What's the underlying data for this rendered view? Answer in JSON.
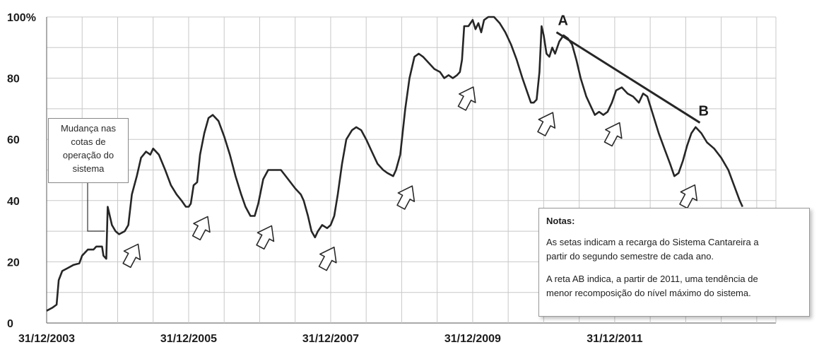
{
  "chart_data": {
    "type": "line",
    "title": "",
    "xlabel": "",
    "ylabel": "",
    "ylim": [
      0,
      100
    ],
    "y_ticks": [
      "0",
      "20",
      "40",
      "60",
      "80",
      "100%"
    ],
    "x_ticks": [
      "31/12/2003",
      "31/12/2005",
      "31/12/2007",
      "31/12/2009",
      "31/12/2011"
    ],
    "x_tick_years": [
      2004.0,
      2006.0,
      2008.0,
      2010.0,
      2012.0
    ],
    "xlim_years": [
      2004.0,
      2014.27
    ],
    "grid": true,
    "series": [
      {
        "name": "",
        "points": [
          [
            2004.0,
            4
          ],
          [
            2004.08,
            5
          ],
          [
            2004.14,
            6
          ],
          [
            2004.17,
            14
          ],
          [
            2004.22,
            17
          ],
          [
            2004.3,
            18
          ],
          [
            2004.38,
            19
          ],
          [
            2004.46,
            19.5
          ],
          [
            2004.5,
            22
          ],
          [
            2004.58,
            24
          ],
          [
            2004.66,
            24
          ],
          [
            2004.7,
            25
          ],
          [
            2004.78,
            25
          ],
          [
            2004.8,
            22
          ],
          [
            2004.84,
            21
          ],
          [
            2004.86,
            38
          ],
          [
            2004.92,
            32
          ],
          [
            2004.97,
            30
          ],
          [
            2005.02,
            29
          ],
          [
            2005.1,
            30
          ],
          [
            2005.15,
            32
          ],
          [
            2005.2,
            42
          ],
          [
            2005.27,
            48
          ],
          [
            2005.33,
            54
          ],
          [
            2005.4,
            56
          ],
          [
            2005.46,
            55
          ],
          [
            2005.5,
            57
          ],
          [
            2005.58,
            55
          ],
          [
            2005.67,
            50
          ],
          [
            2005.75,
            45
          ],
          [
            2005.83,
            42
          ],
          [
            2005.9,
            40
          ],
          [
            2005.96,
            38
          ],
          [
            2006.0,
            38
          ],
          [
            2006.03,
            39
          ],
          [
            2006.07,
            45
          ],
          [
            2006.12,
            46
          ],
          [
            2006.16,
            55
          ],
          [
            2006.22,
            62
          ],
          [
            2006.28,
            67
          ],
          [
            2006.34,
            68
          ],
          [
            2006.42,
            66
          ],
          [
            2006.5,
            61
          ],
          [
            2006.58,
            55
          ],
          [
            2006.66,
            48
          ],
          [
            2006.74,
            42
          ],
          [
            2006.8,
            38
          ],
          [
            2006.87,
            35
          ],
          [
            2006.93,
            35
          ],
          [
            2006.98,
            39
          ],
          [
            2007.05,
            47
          ],
          [
            2007.12,
            50
          ],
          [
            2007.2,
            50
          ],
          [
            2007.3,
            50
          ],
          [
            2007.4,
            47
          ],
          [
            2007.5,
            44
          ],
          [
            2007.58,
            42
          ],
          [
            2007.62,
            40
          ],
          [
            2007.68,
            35
          ],
          [
            2007.73,
            30
          ],
          [
            2007.78,
            28
          ],
          [
            2007.82,
            30
          ],
          [
            2007.88,
            32
          ],
          [
            2007.95,
            31
          ],
          [
            2008.0,
            32
          ],
          [
            2008.05,
            35
          ],
          [
            2008.1,
            42
          ],
          [
            2008.16,
            52
          ],
          [
            2008.22,
            60
          ],
          [
            2008.3,
            63
          ],
          [
            2008.36,
            64
          ],
          [
            2008.43,
            63
          ],
          [
            2008.5,
            60
          ],
          [
            2008.58,
            56
          ],
          [
            2008.66,
            52
          ],
          [
            2008.74,
            50
          ],
          [
            2008.8,
            49
          ],
          [
            2008.88,
            48
          ],
          [
            2008.92,
            50
          ],
          [
            2008.98,
            55
          ],
          [
            2009.05,
            70
          ],
          [
            2009.11,
            80
          ],
          [
            2009.18,
            87
          ],
          [
            2009.24,
            88
          ],
          [
            2009.3,
            87
          ],
          [
            2009.38,
            85
          ],
          [
            2009.46,
            83
          ],
          [
            2009.54,
            82
          ],
          [
            2009.6,
            80
          ],
          [
            2009.66,
            81
          ],
          [
            2009.72,
            80
          ],
          [
            2009.78,
            81
          ],
          [
            2009.82,
            82
          ],
          [
            2009.85,
            86
          ],
          [
            2009.88,
            97
          ],
          [
            2009.94,
            97
          ],
          [
            2010.0,
            99
          ],
          [
            2010.04,
            96
          ],
          [
            2010.08,
            98
          ],
          [
            2010.12,
            95
          ],
          [
            2010.16,
            99
          ],
          [
            2010.22,
            100
          ],
          [
            2010.3,
            100
          ],
          [
            2010.38,
            98
          ],
          [
            2010.46,
            95
          ],
          [
            2010.54,
            91
          ],
          [
            2010.62,
            86
          ],
          [
            2010.7,
            80
          ],
          [
            2010.76,
            76
          ],
          [
            2010.82,
            72
          ],
          [
            2010.86,
            72
          ],
          [
            2010.9,
            73
          ],
          [
            2010.94,
            82
          ],
          [
            2010.97,
            97
          ],
          [
            2011.0,
            94
          ],
          [
            2011.04,
            88
          ],
          [
            2011.08,
            87
          ],
          [
            2011.12,
            90
          ],
          [
            2011.16,
            88
          ],
          [
            2011.22,
            92
          ],
          [
            2011.28,
            94
          ],
          [
            2011.34,
            93
          ],
          [
            2011.4,
            91
          ],
          [
            2011.46,
            86
          ],
          [
            2011.52,
            80
          ],
          [
            2011.6,
            74
          ],
          [
            2011.66,
            71
          ],
          [
            2011.72,
            68
          ],
          [
            2011.78,
            69
          ],
          [
            2011.84,
            68
          ],
          [
            2011.9,
            69
          ],
          [
            2011.96,
            72
          ],
          [
            2012.02,
            76
          ],
          [
            2012.1,
            77
          ],
          [
            2012.18,
            75
          ],
          [
            2012.26,
            74
          ],
          [
            2012.34,
            72
          ],
          [
            2012.4,
            75
          ],
          [
            2012.46,
            74
          ],
          [
            2012.54,
            68
          ],
          [
            2012.62,
            62
          ],
          [
            2012.7,
            57
          ],
          [
            2012.78,
            52
          ],
          [
            2012.84,
            48
          ],
          [
            2012.9,
            49
          ],
          [
            2012.96,
            53
          ],
          [
            2013.02,
            58
          ],
          [
            2013.08,
            62
          ],
          [
            2013.14,
            64
          ],
          [
            2013.22,
            62
          ],
          [
            2013.3,
            59
          ],
          [
            2013.4,
            57
          ],
          [
            2013.5,
            54
          ],
          [
            2013.6,
            50
          ],
          [
            2013.68,
            45
          ],
          [
            2013.76,
            40
          ],
          [
            2013.8,
            38
          ]
        ]
      }
    ],
    "trend_line": {
      "label_start": "A",
      "label_end": "B",
      "start": [
        2011.18,
        95
      ],
      "end": [
        2013.14,
        65
      ]
    },
    "recharge_arrows_at": [
      2005.02,
      2006.0,
      2006.9,
      2007.78,
      2008.88,
      2009.74,
      2010.86,
      2011.8,
      2012.86
    ],
    "annotation": {
      "x_year": 2004.84,
      "lines": [
        "Mudança nas",
        "cotas de",
        "operação do",
        "sistema"
      ]
    },
    "notes": {
      "title": "Notas:",
      "paragraph1": [
        "As setas indicam a recarga do Sistema Cantareira a",
        "partir do segundo semestre de cada ano."
      ],
      "paragraph2": [
        "A reta AB indica, a partir de 2011, uma tendência de",
        "menor recomposição do nível máximo do sistema."
      ]
    }
  }
}
